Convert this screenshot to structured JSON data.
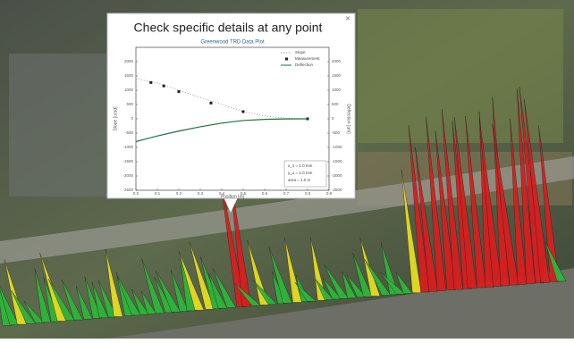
{
  "popup": {
    "title": "Check specific details at any point",
    "chart_data": {
      "type": "line",
      "title": "Greenwood TRD Data Plot",
      "x_label": "Position [m]",
      "y_label": "Slope [urad]",
      "y2_label": "Deflection [um]",
      "xlim": [
        0,
        0.9
      ],
      "xticks": [
        {
          "value": 0,
          "label": "0.0"
        },
        0.1,
        0.2,
        0.3,
        0.4,
        0.5,
        0.6,
        0.7,
        0.8,
        0.9
      ],
      "ylim": [
        -2500,
        2500
      ],
      "yticks": [
        2000,
        1500,
        1000,
        500,
        0,
        -500,
        -1000,
        -1500,
        -2000,
        -2500
      ],
      "y2lim": [
        -2500,
        2500
      ],
      "y2ticks": [
        2000,
        1500,
        1000,
        500,
        0,
        -500,
        -1000,
        -1500,
        -2000,
        -2500
      ],
      "series": [
        {
          "name": "Slope",
          "color": "#888888",
          "style": "dotted",
          "x": [
            0,
            0.1,
            0.2,
            0.3,
            0.4,
            0.5,
            0.6,
            0.7,
            0.8
          ],
          "values": [
            1400,
            1250,
            1000,
            750,
            500,
            260,
            100,
            20,
            0
          ]
        },
        {
          "name": "Measurement",
          "color": "#222222",
          "style": "markers",
          "x": [
            0.07,
            0.13,
            0.2,
            0.35,
            0.5,
            0.8
          ],
          "values": [
            1270,
            1150,
            950,
            550,
            250,
            0
          ]
        },
        {
          "name": "Deflection",
          "color": "#1f6f3f",
          "style": "solid",
          "axis": "y2",
          "x": [
            0,
            0.1,
            0.2,
            0.3,
            0.4,
            0.5,
            0.6,
            0.7,
            0.8
          ],
          "values": [
            -800,
            -600,
            -430,
            -280,
            -150,
            -60,
            -20,
            -5,
            0
          ]
        }
      ],
      "annotation": [
        "x_1 = 1.0 mm",
        "y_1 = 1.0 mm",
        "area = 1.0 m"
      ]
    }
  }
}
